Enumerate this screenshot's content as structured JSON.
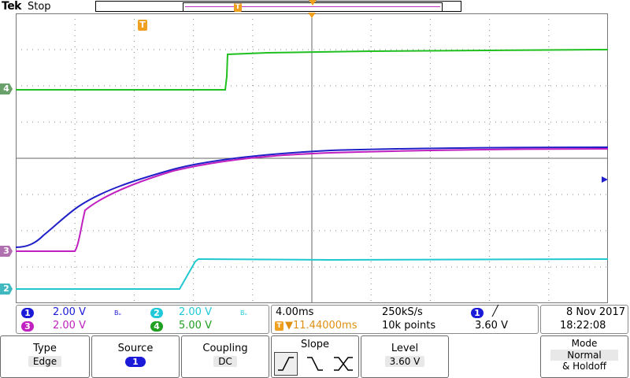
{
  "header": {
    "brand": "Tek",
    "status": "Stop"
  },
  "markers": {
    "trigger_marker": "T",
    "ch4_marker": "4",
    "ch3_marker": "3",
    "ch2_marker": "2"
  },
  "channels": [
    {
      "number": "1",
      "scale": "2.00 V",
      "bw": "Bᵤ",
      "color": "#1a1ad8"
    },
    {
      "number": "2",
      "scale": "2.00 V",
      "bw": "Bᵤ",
      "color": "#20c8d8"
    },
    {
      "number": "3",
      "scale": "2.00 V",
      "bw": "",
      "color": "#c020c0"
    },
    {
      "number": "4",
      "scale": "5.00 V",
      "bw": "",
      "color": "#20b020"
    }
  ],
  "timebase": {
    "time_per_div": "4.00ms",
    "sample_rate": "250kS/s",
    "trigger_pos": "▼11.44000ms",
    "record_length": "10k points"
  },
  "trigger": {
    "source": "1",
    "slope_symbol": "╱",
    "level": "3.60 V"
  },
  "datetime": {
    "date": "8 Nov  2017",
    "time": "18:22:08"
  },
  "menu": {
    "type_title": "Type",
    "type_value": "Edge",
    "source_title": "Source",
    "source_value": "1",
    "coupling_title": "Coupling",
    "coupling_value": "DC",
    "slope_title": "Slope",
    "level_title": "Level",
    "level_value": "3.60 V",
    "mode_title": "Mode",
    "mode_value1": "Normal",
    "mode_value2": "& Holdoff"
  }
}
